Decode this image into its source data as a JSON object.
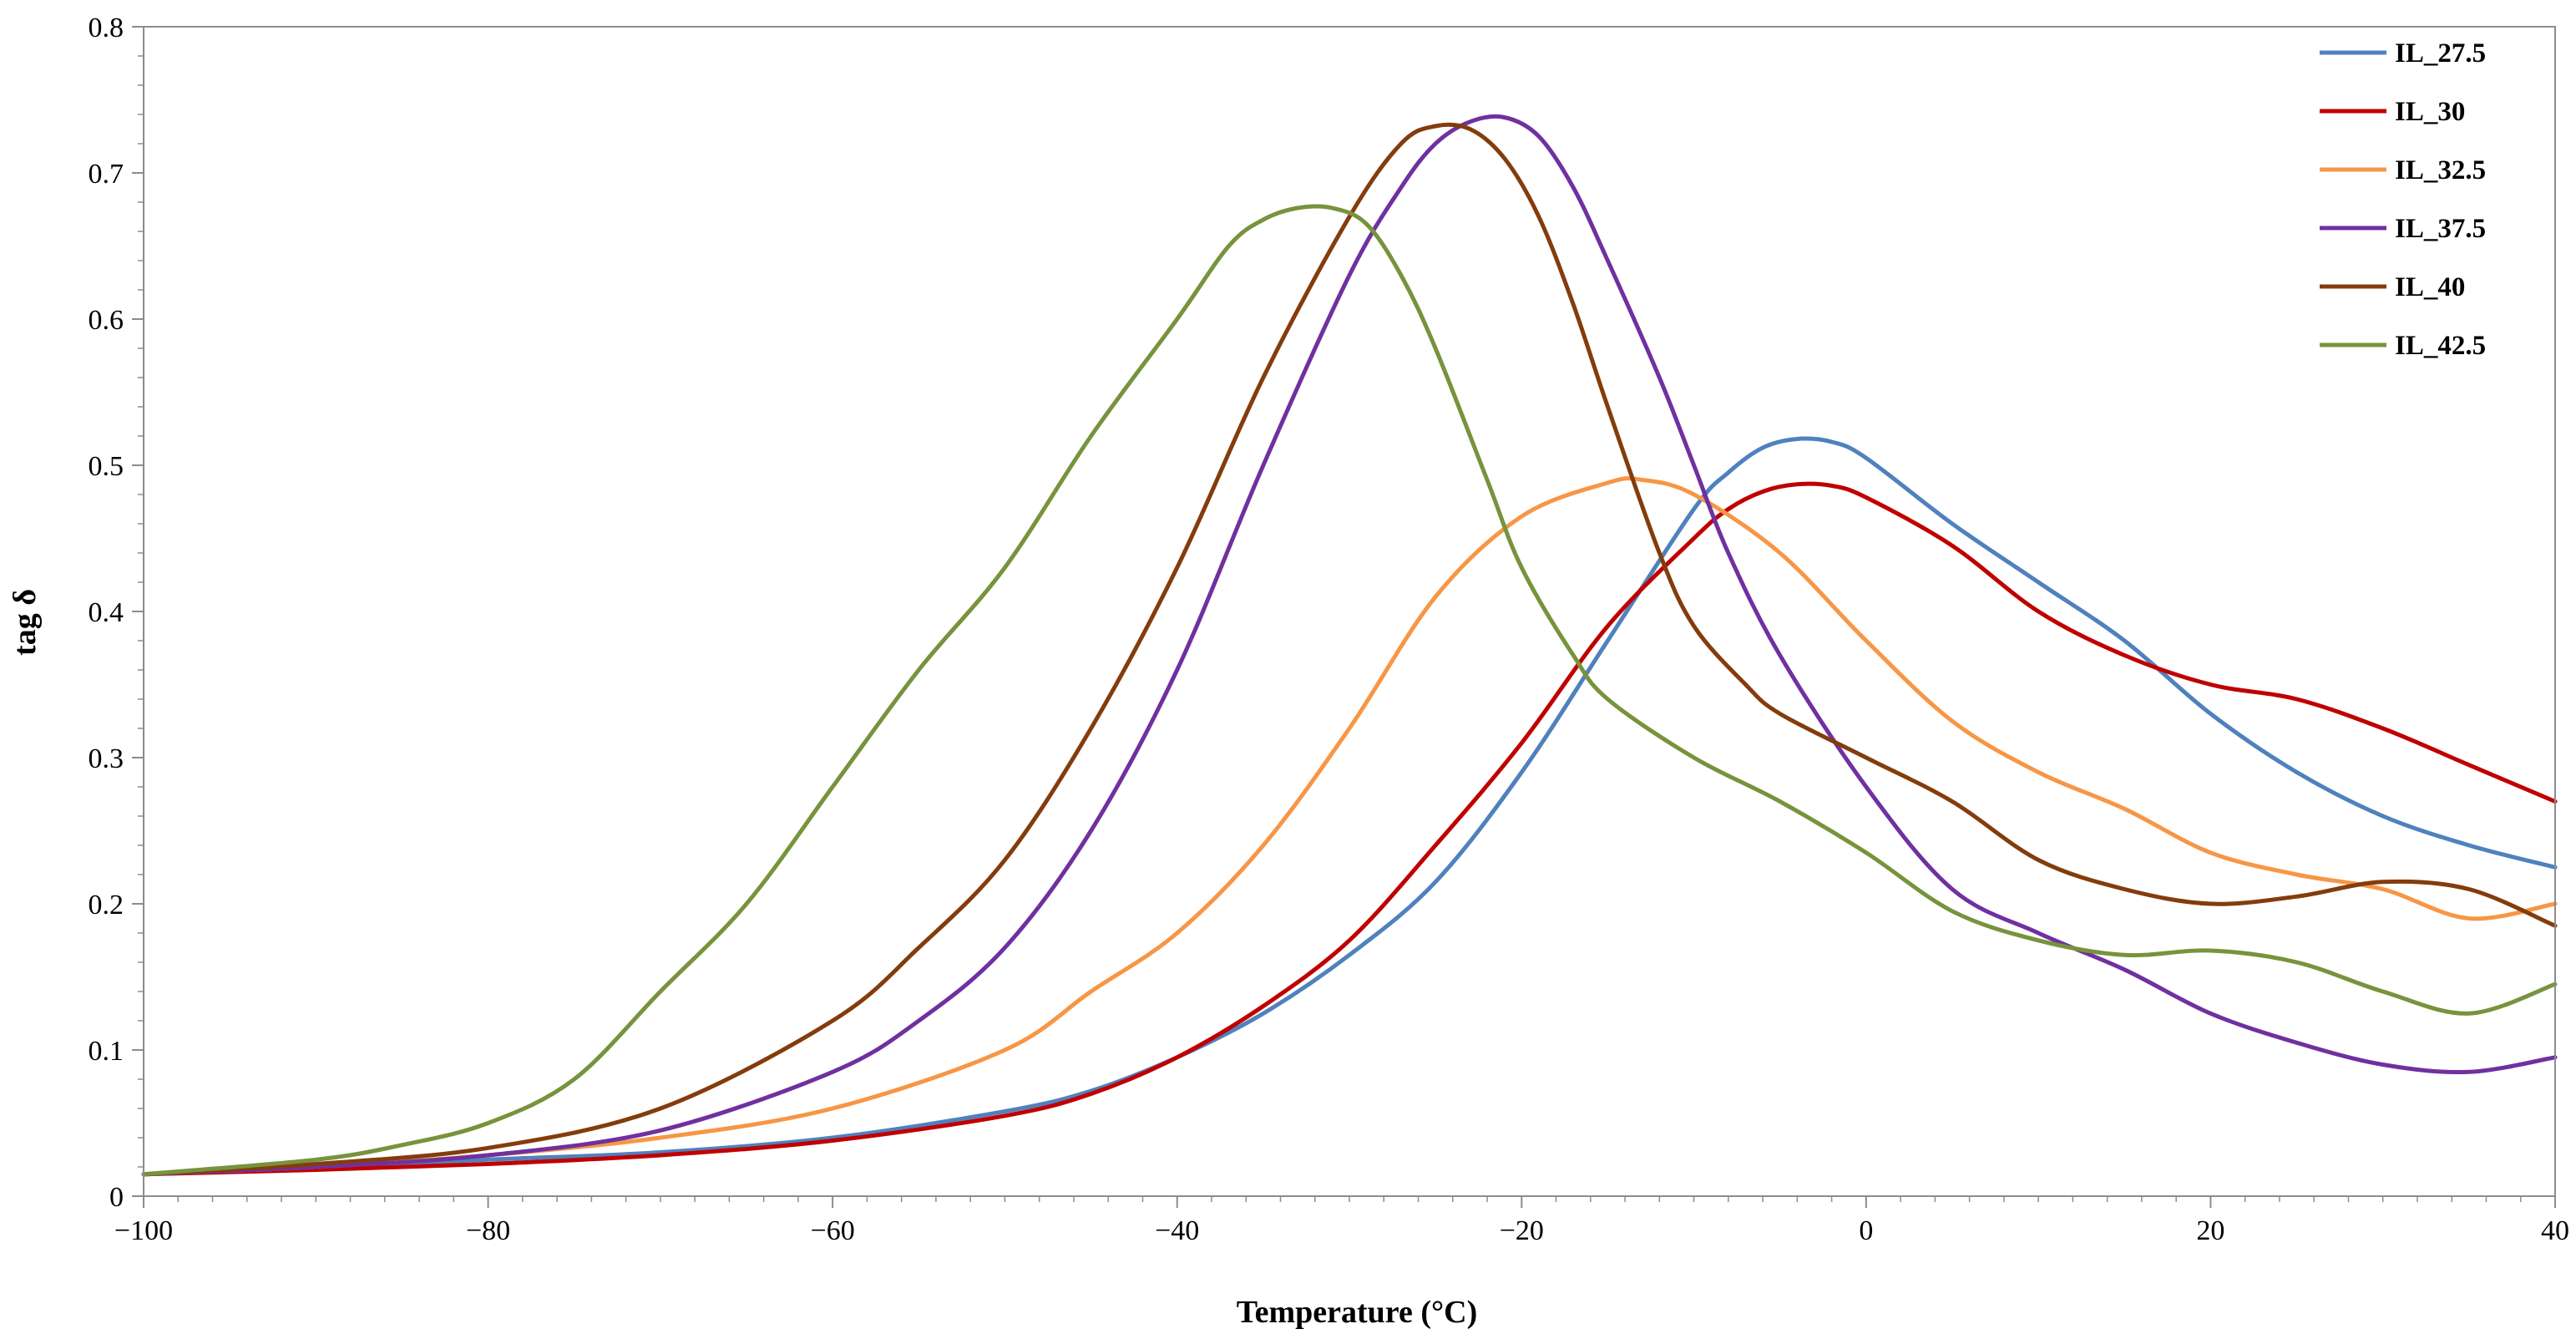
{
  "chart_data": {
    "type": "line",
    "title": "",
    "xlabel": "Temperature (°C)",
    "ylabel": "tag δ",
    "xlim": [
      -100,
      40
    ],
    "ylim": [
      0,
      0.8
    ],
    "xticks": [
      -100,
      -80,
      -60,
      -40,
      -20,
      0,
      20,
      40
    ],
    "xtick_labels": [
      "−100",
      "−80",
      "−60",
      "−40",
      "−20",
      "0",
      "20",
      "40"
    ],
    "yticks": [
      0,
      0.1,
      0.2,
      0.3,
      0.4,
      0.5,
      0.6,
      0.7,
      0.8
    ],
    "ytick_labels": [
      "0",
      "0.1",
      "0.2",
      "0.3",
      "0.4",
      "0.5",
      "0.6",
      "0.7",
      "0.8"
    ],
    "grid": false,
    "legend_position": "top-right",
    "series": [
      {
        "name": "IL_27.5",
        "color": "#4F81BD",
        "x": [
          -100,
          -90,
          -80,
          -70,
          -60,
          -50,
          -45,
          -40,
          -35,
          -30,
          -25,
          -20,
          -15,
          -10,
          -8,
          -6,
          -4,
          -2,
          0,
          5,
          10,
          15,
          20,
          25,
          30,
          35,
          40
        ],
        "y": [
          0.015,
          0.02,
          0.025,
          0.03,
          0.04,
          0.058,
          0.072,
          0.095,
          0.125,
          0.165,
          0.215,
          0.29,
          0.38,
          0.47,
          0.495,
          0.512,
          0.518,
          0.516,
          0.505,
          0.46,
          0.42,
          0.38,
          0.33,
          0.29,
          0.26,
          0.24,
          0.225
        ]
      },
      {
        "name": "IL_30",
        "color": "#C00000",
        "x": [
          -100,
          -90,
          -80,
          -70,
          -60,
          -50,
          -45,
          -40,
          -35,
          -30,
          -25,
          -20,
          -15,
          -10,
          -8,
          -6,
          -4,
          -2,
          0,
          5,
          10,
          15,
          20,
          25,
          30,
          35,
          40
        ],
        "y": [
          0.015,
          0.018,
          0.022,
          0.028,
          0.038,
          0.055,
          0.07,
          0.095,
          0.13,
          0.175,
          0.24,
          0.31,
          0.39,
          0.45,
          0.47,
          0.482,
          0.487,
          0.486,
          0.478,
          0.445,
          0.4,
          0.37,
          0.35,
          0.34,
          0.32,
          0.295,
          0.27
        ]
      },
      {
        "name": "IL_32.5",
        "color": "#F79646",
        "x": [
          -100,
          -90,
          -80,
          -70,
          -60,
          -50,
          -45,
          -40,
          -35,
          -30,
          -25,
          -20,
          -15,
          -13,
          -10,
          -5,
          0,
          5,
          10,
          15,
          20,
          25,
          30,
          35,
          40
        ],
        "y": [
          0.015,
          0.02,
          0.028,
          0.04,
          0.06,
          0.1,
          0.14,
          0.18,
          0.24,
          0.32,
          0.41,
          0.465,
          0.488,
          0.49,
          0.48,
          0.44,
          0.38,
          0.325,
          0.29,
          0.265,
          0.235,
          0.22,
          0.21,
          0.19,
          0.2
        ]
      },
      {
        "name": "IL_37.5",
        "color": "#7030A0",
        "x": [
          -100,
          -90,
          -80,
          -70,
          -60,
          -55,
          -50,
          -45,
          -40,
          -35,
          -30,
          -27,
          -25,
          -23,
          -21,
          -19,
          -17,
          -15,
          -12,
          -10,
          -8,
          -5,
          0,
          5,
          10,
          15,
          20,
          25,
          30,
          35,
          40
        ],
        "y": [
          0.015,
          0.02,
          0.028,
          0.045,
          0.085,
          0.12,
          0.17,
          0.25,
          0.36,
          0.5,
          0.63,
          0.69,
          0.72,
          0.735,
          0.738,
          0.725,
          0.69,
          0.64,
          0.56,
          0.5,
          0.44,
          0.37,
          0.28,
          0.21,
          0.18,
          0.155,
          0.125,
          0.105,
          0.09,
          0.085,
          0.095
        ]
      },
      {
        "name": "IL_40",
        "color": "#843C0C",
        "x": [
          -100,
          -90,
          -80,
          -70,
          -60,
          -55,
          -50,
          -45,
          -40,
          -35,
          -30,
          -27,
          -25,
          -23,
          -21,
          -19,
          -17,
          -15,
          -12,
          -10,
          -7,
          -5,
          0,
          5,
          10,
          15,
          20,
          25,
          30,
          35,
          40
        ],
        "y": [
          0.015,
          0.022,
          0.033,
          0.06,
          0.12,
          0.17,
          0.23,
          0.32,
          0.43,
          0.56,
          0.67,
          0.72,
          0.732,
          0.73,
          0.71,
          0.67,
          0.61,
          0.54,
          0.44,
          0.39,
          0.35,
          0.33,
          0.3,
          0.27,
          0.23,
          0.21,
          0.2,
          0.205,
          0.215,
          0.21,
          0.185
        ]
      },
      {
        "name": "IL_42.5",
        "color": "#77933C",
        "x": [
          -100,
          -90,
          -85,
          -80,
          -75,
          -70,
          -65,
          -60,
          -55,
          -50,
          -45,
          -40,
          -37,
          -35,
          -33,
          -31,
          -29,
          -27,
          -25,
          -22,
          -20,
          -17,
          -15,
          -10,
          -5,
          0,
          5,
          10,
          15,
          20,
          25,
          30,
          35,
          40
        ],
        "y": [
          0.015,
          0.025,
          0.035,
          0.05,
          0.08,
          0.14,
          0.2,
          0.28,
          0.36,
          0.43,
          0.52,
          0.6,
          0.65,
          0.668,
          0.676,
          0.676,
          0.665,
          0.63,
          0.58,
          0.49,
          0.43,
          0.37,
          0.34,
          0.3,
          0.27,
          0.235,
          0.195,
          0.175,
          0.165,
          0.168,
          0.16,
          0.14,
          0.125,
          0.145
        ]
      }
    ]
  }
}
